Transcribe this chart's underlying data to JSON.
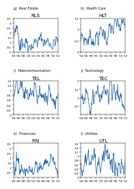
{
  "panels": [
    {
      "letter": "g)",
      "section": "Real Estate",
      "title": "RLS",
      "ylim": [
        0,
        3.5
      ],
      "yticks": [
        0,
        0.5,
        1,
        1.5,
        2,
        2.5,
        3,
        3.5
      ],
      "ytick_labels": [
        "0",
        "0.5",
        "1",
        "1.5",
        "2",
        "2.5",
        "3",
        "3.5"
      ],
      "seed": 42,
      "base_mean": 1.1,
      "base_std": 0.3,
      "profile": "rls"
    },
    {
      "letter": "h)",
      "section": "Health Care",
      "title": "HLT",
      "ylim": [
        0,
        1.5
      ],
      "yticks": [
        0,
        0.5,
        1,
        1.5
      ],
      "ytick_labels": [
        "0",
        "0.5",
        "1",
        "1.5"
      ],
      "seed": 7,
      "base_mean": 0.8,
      "base_std": 0.18,
      "profile": "hlt"
    },
    {
      "letter": "i)",
      "section": "Telecommunication",
      "title": "TEL",
      "ylim": [
        0,
        1.4
      ],
      "yticks": [
        0,
        0.2,
        0.4,
        0.6,
        0.8,
        1.0,
        1.2,
        1.4
      ],
      "ytick_labels": [
        "0",
        "0.2",
        "0.4",
        "0.6",
        "0.8",
        "1",
        "1.2",
        "1.4"
      ],
      "seed": 13,
      "base_mean": 0.85,
      "base_std": 0.18,
      "profile": "tel"
    },
    {
      "letter": "j)",
      "section": "Technology",
      "title": "TEC",
      "ylim": [
        0,
        2.0
      ],
      "yticks": [
        0.5,
        1.0,
        1.5,
        2.0
      ],
      "ytick_labels": [
        "0.5",
        "1",
        "1.5",
        "2"
      ],
      "seed": 21,
      "base_mean": 1.0,
      "base_std": 0.25,
      "profile": "tec"
    },
    {
      "letter": "k)",
      "section": "Financials",
      "title": "FIN",
      "ylim": [
        0,
        3.5
      ],
      "yticks": [
        0.5,
        1.0,
        1.5,
        2.0,
        2.5,
        3.0,
        3.5
      ],
      "ytick_labels": [
        "0.5",
        "1",
        "1.5",
        "2",
        "2.5",
        "3",
        "3.5"
      ],
      "seed": 33,
      "base_mean": 1.1,
      "base_std": 0.3,
      "profile": "fin"
    },
    {
      "letter": "l)",
      "section": "Utilities",
      "title": "UTL",
      "ylim": [
        0,
        1.6
      ],
      "yticks": [
        0,
        0.2,
        0.4,
        0.6,
        0.8,
        1.0,
        1.2,
        1.4,
        1.6
      ],
      "ytick_labels": [
        "0",
        "0.2",
        "0.4",
        "0.6",
        "0.8",
        "1",
        "1.2",
        "1.4",
        "1.6"
      ],
      "seed": 55,
      "base_mean": 0.7,
      "base_std": 0.25,
      "profile": "utl"
    }
  ],
  "n_points": 120,
  "line_color": "#1a5fa8",
  "line_width": 0.55,
  "bg_color": "#ffffff",
  "title_fontsize": 5.0,
  "section_fontsize": 3.5,
  "tick_fontsize": 3.0,
  "x_tick_labels": [
    "'94",
    "'96",
    "'98",
    "'00",
    "'02",
    "'04",
    "'06",
    "'08",
    "'10",
    "'12"
  ]
}
